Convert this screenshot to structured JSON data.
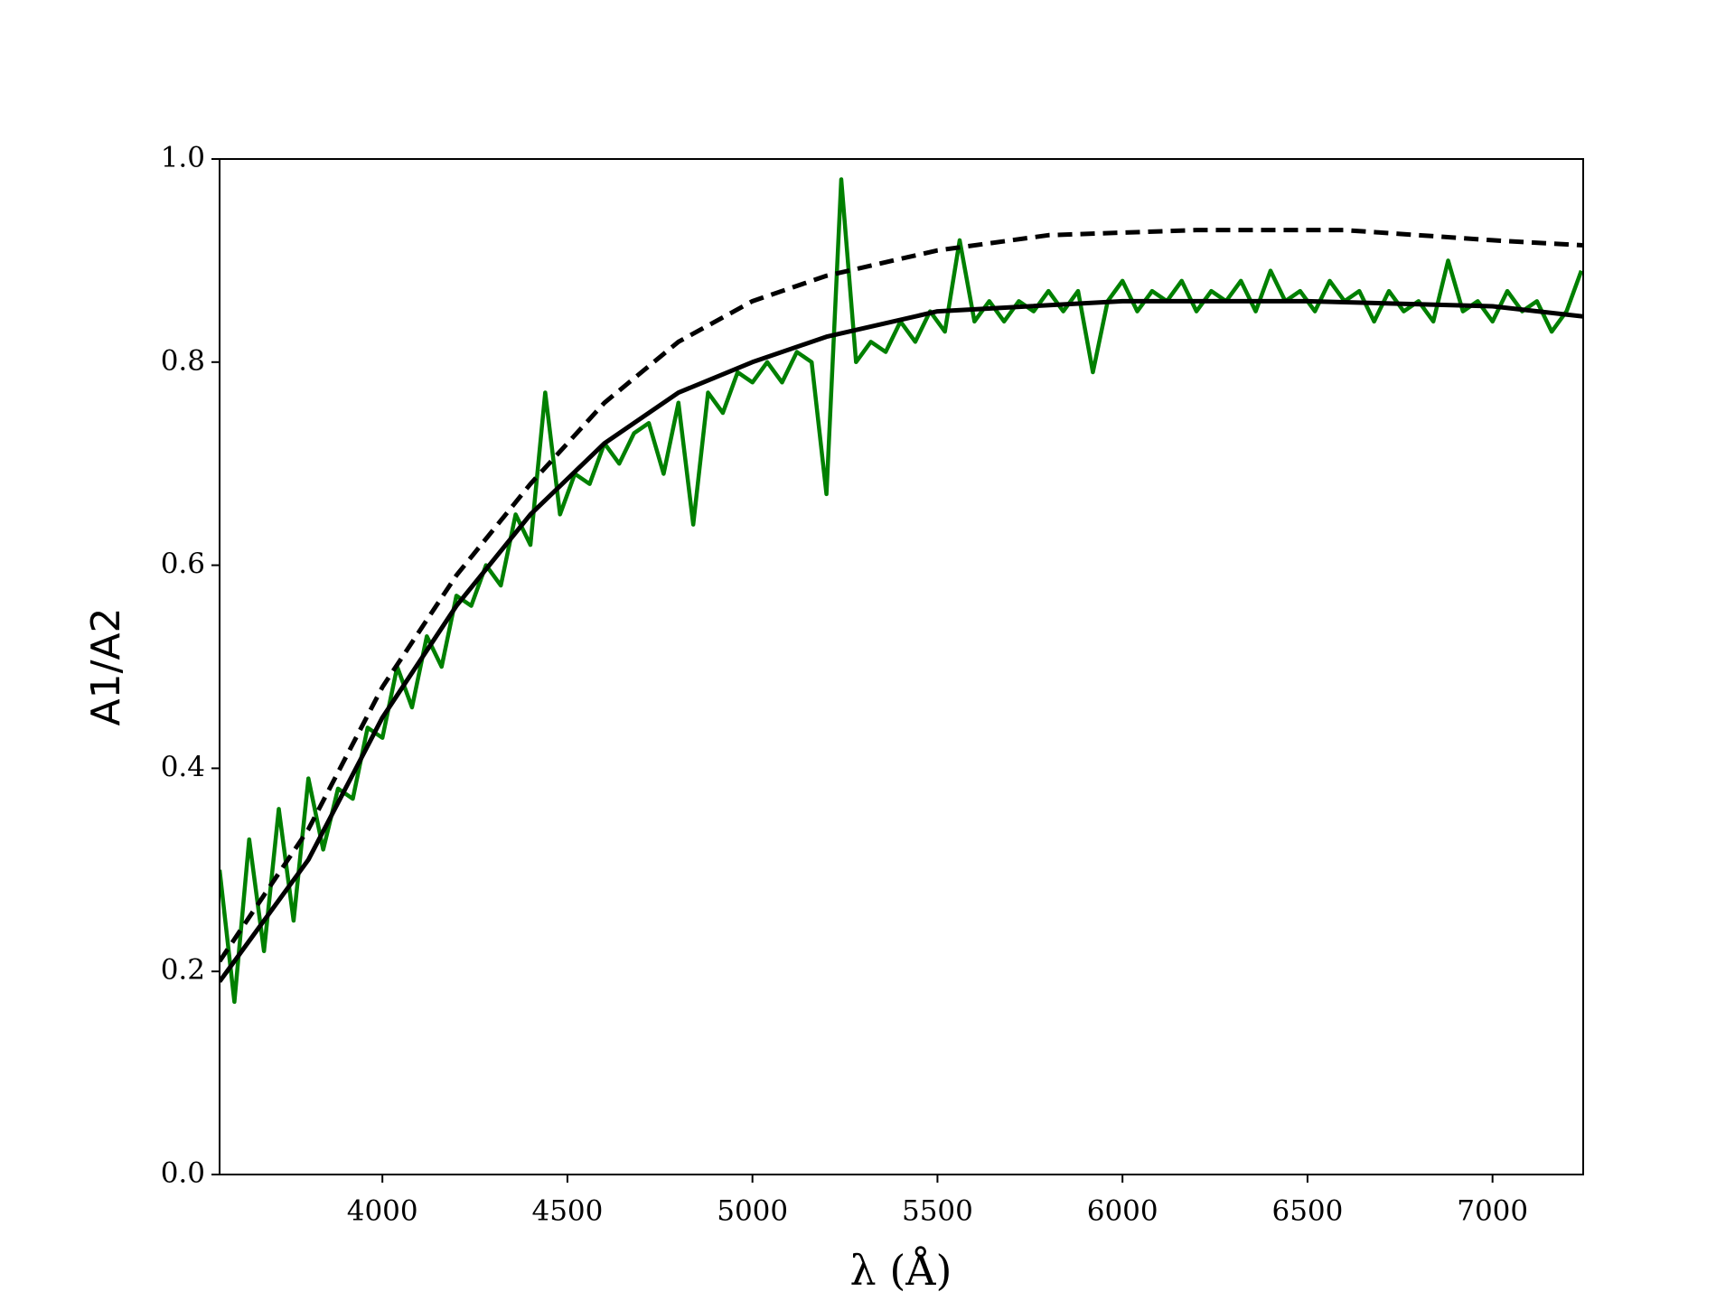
{
  "chart_data": {
    "type": "line",
    "xlabel": "λ (Å)",
    "ylabel": "A1/A2",
    "xlim": [
      3560,
      7245
    ],
    "ylim": [
      0,
      1
    ],
    "xticks": [
      4000,
      4500,
      5000,
      5500,
      6000,
      6500,
      7000
    ],
    "yticks": [
      {
        "value": 0,
        "label": "0.0"
      },
      0.2,
      0.4,
      0.6,
      0.8,
      {
        "value": 1,
        "label": "1.0"
      }
    ],
    "series": [
      {
        "color": "#008000",
        "style": "solid",
        "x": [
          3560,
          3600,
          3640,
          3680,
          3720,
          3760,
          3800,
          3840,
          3880,
          3920,
          3960,
          4000,
          4040,
          4080,
          4120,
          4160,
          4200,
          4240,
          4280,
          4320,
          4360,
          4400,
          4440,
          4480,
          4520,
          4560,
          4600,
          4640,
          4680,
          4720,
          4760,
          4800,
          4840,
          4880,
          4920,
          4960,
          5000,
          5040,
          5080,
          5120,
          5160,
          5200,
          5240,
          5280,
          5320,
          5360,
          5400,
          5440,
          5480,
          5520,
          5560,
          5600,
          5640,
          5680,
          5720,
          5760,
          5800,
          5840,
          5880,
          5920,
          5960,
          6000,
          6040,
          6080,
          6120,
          6160,
          6200,
          6240,
          6280,
          6320,
          6360,
          6400,
          6440,
          6480,
          6520,
          6560,
          6600,
          6640,
          6680,
          6720,
          6760,
          6800,
          6840,
          6880,
          6920,
          6960,
          7000,
          7040,
          7080,
          7120,
          7160,
          7200,
          7240
        ],
        "values": [
          0.3,
          0.17,
          0.33,
          0.22,
          0.36,
          0.25,
          0.39,
          0.32,
          0.38,
          0.37,
          0.44,
          0.43,
          0.5,
          0.46,
          0.53,
          0.5,
          0.57,
          0.56,
          0.6,
          0.58,
          0.65,
          0.62,
          0.77,
          0.65,
          0.69,
          0.68,
          0.72,
          0.7,
          0.73,
          0.74,
          0.69,
          0.76,
          0.64,
          0.77,
          0.75,
          0.79,
          0.78,
          0.8,
          0.78,
          0.81,
          0.8,
          0.67,
          0.98,
          0.8,
          0.82,
          0.81,
          0.84,
          0.82,
          0.85,
          0.83,
          0.92,
          0.84,
          0.86,
          0.84,
          0.86,
          0.85,
          0.87,
          0.85,
          0.87,
          0.79,
          0.86,
          0.88,
          0.85,
          0.87,
          0.86,
          0.88,
          0.85,
          0.87,
          0.86,
          0.88,
          0.85,
          0.89,
          0.86,
          0.87,
          0.85,
          0.88,
          0.86,
          0.87,
          0.84,
          0.87,
          0.85,
          0.86,
          0.84,
          0.9,
          0.85,
          0.86,
          0.84,
          0.87,
          0.85,
          0.86,
          0.83,
          0.85,
          0.89
        ]
      },
      {
        "color": "#000000",
        "style": "dashed",
        "x": [
          3560,
          3800,
          4000,
          4200,
          4400,
          4600,
          4800,
          5000,
          5200,
          5500,
          5800,
          6200,
          6600,
          7000,
          7245
        ],
        "values": [
          0.21,
          0.34,
          0.48,
          0.59,
          0.68,
          0.76,
          0.82,
          0.86,
          0.885,
          0.91,
          0.925,
          0.93,
          0.93,
          0.92,
          0.915
        ]
      },
      {
        "color": "#000000",
        "style": "solid",
        "x": [
          3560,
          3800,
          4000,
          4200,
          4400,
          4600,
          4800,
          5000,
          5200,
          5500,
          6000,
          6500,
          7000,
          7245
        ],
        "values": [
          0.19,
          0.31,
          0.45,
          0.56,
          0.65,
          0.72,
          0.77,
          0.8,
          0.825,
          0.85,
          0.86,
          0.86,
          0.855,
          0.845
        ]
      }
    ]
  }
}
